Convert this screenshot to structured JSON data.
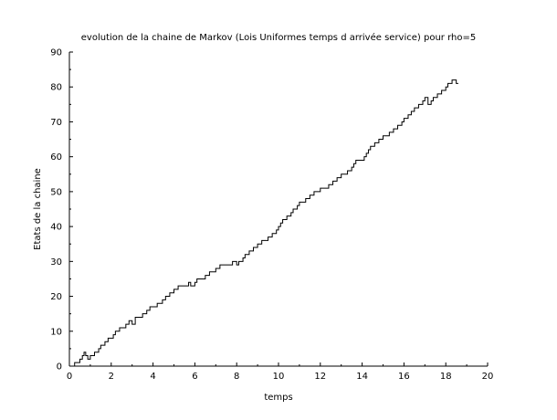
{
  "chart_data": {
    "type": "line",
    "title": "evolution de la chaine de Markov (Lois Uniformes temps d arrivée service) pour rho=5",
    "xlabel": "temps",
    "ylabel": "Etats de la chaine",
    "xlim": [
      0,
      20
    ],
    "ylim": [
      0,
      90
    ],
    "x_ticks": [
      0,
      2,
      4,
      6,
      8,
      10,
      12,
      14,
      16,
      18,
      20
    ],
    "y_ticks": [
      0,
      10,
      20,
      30,
      40,
      50,
      60,
      70,
      80,
      90
    ],
    "grid": false,
    "line_style": "step",
    "series": [
      {
        "color": "#000000",
        "x": [
          0,
          0.25,
          0.5,
          0.62,
          0.7,
          0.78,
          0.88,
          1.0,
          1.2,
          1.4,
          1.5,
          1.7,
          1.85,
          2.0,
          2.1,
          2.2,
          2.4,
          2.55,
          2.7,
          2.85,
          3.0,
          3.15,
          3.3,
          3.5,
          3.7,
          3.85,
          4.0,
          4.2,
          4.45,
          4.6,
          4.8,
          5.0,
          5.2,
          5.5,
          5.7,
          5.8,
          6.0,
          6.1,
          6.3,
          6.5,
          6.7,
          7.0,
          7.2,
          7.5,
          7.8,
          8.0,
          8.1,
          8.3,
          8.4,
          8.6,
          8.8,
          8.9,
          9.0,
          9.2,
          9.5,
          9.7,
          9.9,
          10.0,
          10.1,
          10.2,
          10.4,
          10.6,
          10.7,
          10.9,
          11.0,
          11.2,
          11.3,
          11.5,
          11.7,
          12.0,
          12.2,
          12.4,
          12.6,
          12.8,
          13.0,
          13.3,
          13.5,
          13.6,
          13.7,
          13.8,
          14.1,
          14.2,
          14.3,
          14.4,
          14.6,
          14.8,
          15.0,
          15.3,
          15.5,
          15.7,
          15.9,
          16.0,
          16.2,
          16.35,
          16.5,
          16.7,
          16.9,
          17.0,
          17.15,
          17.3,
          17.4,
          17.6,
          17.8,
          18.0,
          18.1,
          18.3,
          18.5,
          18.6
        ],
        "y": [
          0,
          1,
          2,
          3,
          4,
          3,
          2,
          3,
          4,
          5,
          6,
          7,
          8,
          8,
          9,
          10,
          11,
          11,
          12,
          13,
          12,
          14,
          14,
          15,
          16,
          17,
          17,
          18,
          19,
          20,
          21,
          22,
          23,
          23,
          24,
          23,
          24,
          25,
          25,
          26,
          27,
          28,
          29,
          29,
          30,
          29,
          30,
          31,
          32,
          33,
          34,
          34,
          35,
          36,
          37,
          38,
          39,
          40,
          41,
          42,
          43,
          44,
          45,
          46,
          47,
          47,
          48,
          49,
          50,
          51,
          51,
          52,
          53,
          54,
          55,
          56,
          57,
          58,
          59,
          59,
          60,
          61,
          62,
          63,
          64,
          65,
          66,
          67,
          68,
          69,
          70,
          71,
          72,
          73,
          74,
          75,
          76,
          77,
          75,
          76,
          77,
          78,
          79,
          80,
          81,
          82,
          81,
          81
        ]
      }
    ]
  }
}
